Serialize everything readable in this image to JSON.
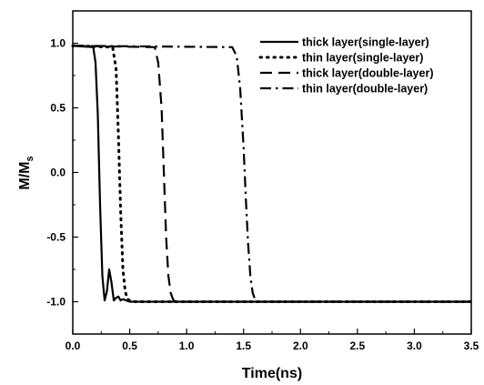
{
  "chart_data": {
    "type": "line",
    "xlabel": "Time(ns)",
    "ylabel_main": "M/M",
    "ylabel_sub": "s",
    "xlim": [
      0.0,
      3.5
    ],
    "ylim": [
      -1.25,
      1.25
    ],
    "x_ticks": [
      "0.0",
      "0.5",
      "1.0",
      "1.5",
      "2.0",
      "2.5",
      "3.0",
      "3.5"
    ],
    "x_tick_values": [
      0.0,
      0.5,
      1.0,
      1.5,
      2.0,
      2.5,
      3.0,
      3.5
    ],
    "y_ticks": [
      "-1.0",
      "-0.5",
      "0.0",
      "0.5",
      "1.0"
    ],
    "y_tick_values": [
      -1.0,
      -0.5,
      0.0,
      0.5,
      1.0
    ],
    "grid": false,
    "legend_position": "top-right",
    "series": [
      {
        "name": "thick layer(single-layer)",
        "style": "solid",
        "x": [
          0.0,
          0.18,
          0.2,
          0.22,
          0.24,
          0.26,
          0.28,
          0.3,
          0.32,
          0.34,
          0.36,
          0.38,
          0.4,
          0.42,
          0.44,
          0.5,
          0.6,
          1.0,
          3.5
        ],
        "y": [
          0.98,
          0.97,
          0.85,
          0.45,
          -0.25,
          -0.8,
          -0.99,
          -0.92,
          -0.75,
          -0.85,
          -0.99,
          -0.97,
          -0.96,
          -0.99,
          -0.98,
          -1.0,
          -1.0,
          -1.0,
          -1.0
        ]
      },
      {
        "name": "thin layer(single-layer)",
        "style": "dotted",
        "x": [
          0.0,
          0.35,
          0.38,
          0.4,
          0.42,
          0.44,
          0.46,
          0.48,
          0.5,
          0.55,
          1.0,
          3.5
        ],
        "y": [
          0.98,
          0.97,
          0.8,
          0.3,
          -0.3,
          -0.75,
          -0.92,
          -0.98,
          -0.99,
          -1.0,
          -1.0,
          -1.0
        ]
      },
      {
        "name": "thick layer(double-layer)",
        "style": "dashed",
        "x": [
          0.0,
          0.72,
          0.75,
          0.78,
          0.8,
          0.82,
          0.84,
          0.86,
          0.88,
          0.9,
          0.95,
          1.5,
          3.5
        ],
        "y": [
          0.98,
          0.97,
          0.85,
          0.5,
          0.0,
          -0.5,
          -0.8,
          -0.93,
          -0.98,
          -1.0,
          -1.0,
          -1.0,
          -1.0
        ]
      },
      {
        "name": "thin layer(double-layer)",
        "style": "dashdot",
        "x": [
          0.0,
          1.4,
          1.44,
          1.47,
          1.5,
          1.52,
          1.54,
          1.56,
          1.58,
          1.6,
          1.62,
          1.7,
          3.5
        ],
        "y": [
          0.98,
          0.97,
          0.9,
          0.65,
          0.2,
          -0.2,
          -0.55,
          -0.8,
          -0.93,
          -0.98,
          -1.0,
          -1.0,
          -1.0
        ]
      }
    ]
  }
}
